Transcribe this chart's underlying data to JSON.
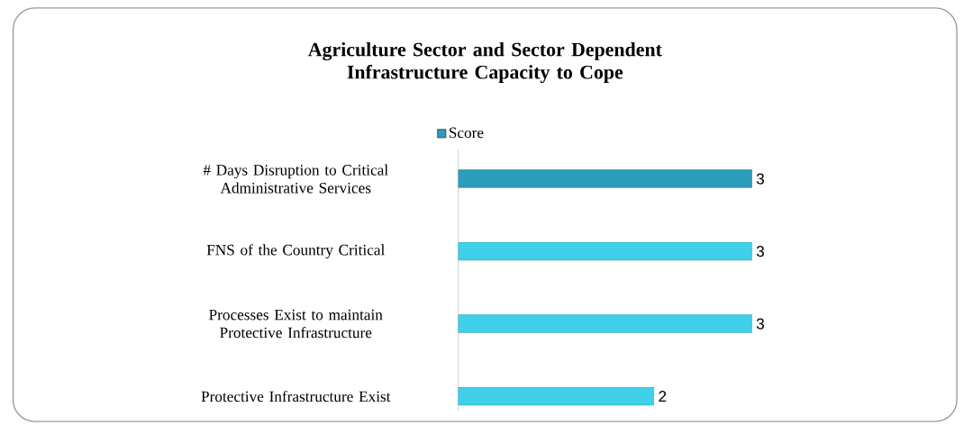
{
  "chart_data": {
    "type": "bar",
    "orientation": "horizontal",
    "title": "Agriculture Sector and Sector Dependent Infrastructure Capacity to Cope",
    "categories": [
      "# Days Disruption to Critical Administrative Services",
      "FNS of the Country Critical",
      "Processes Exist to maintain Protective Infrastructure",
      "Protective Infrastructure Exist"
    ],
    "series": [
      {
        "name": "Score",
        "color": "#2c9dba",
        "colors": [
          "#2c9dba",
          "#3fd0ea",
          "#3fd0ea",
          "#3fd0ea"
        ],
        "values": [
          3,
          3,
          3,
          2
        ]
      }
    ],
    "data_labels": true,
    "legend": "top",
    "tick_labels": "y",
    "grid": false
  }
}
